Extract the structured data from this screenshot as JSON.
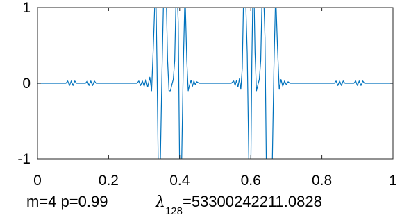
{
  "chart_data": {
    "type": "line",
    "title": "",
    "xlabel": "",
    "ylabel": "",
    "xlim": [
      0,
      1
    ],
    "ylim": [
      -1,
      1
    ],
    "xticks": [
      "0",
      "0.2",
      "0.4",
      "0.6",
      "0.8",
      "1"
    ],
    "yticks": [
      "1",
      "0",
      "-1"
    ],
    "grid": false,
    "colors": {
      "line": "#0072BD",
      "axes": "#262626"
    },
    "series": [
      {
        "x": [
          0,
          0.08,
          0.085,
          0.09,
          0.095,
          0.1,
          0.105,
          0.11,
          0.135,
          0.14,
          0.145,
          0.15,
          0.155,
          0.16,
          0.165,
          0.25,
          0.26,
          0.27,
          0.28,
          0.285,
          0.29,
          0.295,
          0.3,
          0.305,
          0.31,
          0.316,
          0.321,
          0.326,
          0.331,
          0.333,
          0.336,
          0.34,
          0.345,
          0.35,
          0.355,
          0.358,
          0.362,
          0.366,
          0.37,
          0.374,
          0.378,
          0.382,
          0.386,
          0.39,
          0.393,
          0.396,
          0.4,
          0.405,
          0.41,
          0.415,
          0.42,
          0.424,
          0.428,
          0.432,
          0.436,
          0.44,
          0.444,
          0.448,
          0.455,
          0.47,
          0.5,
          0.53,
          0.545,
          0.552,
          0.556,
          0.56,
          0.564,
          0.568,
          0.572,
          0.576,
          0.58,
          0.585,
          0.59,
          0.595,
          0.6,
          0.603,
          0.606,
          0.609,
          0.612,
          0.616,
          0.62,
          0.624,
          0.628,
          0.632,
          0.636,
          0.64,
          0.644,
          0.648,
          0.652,
          0.656,
          0.66,
          0.665,
          0.67,
          0.675,
          0.68,
          0.685,
          0.69,
          0.695,
          0.7,
          0.705,
          0.71,
          0.72,
          0.73,
          0.74,
          0.835,
          0.84,
          0.845,
          0.85,
          0.855,
          0.86,
          0.865,
          0.89,
          0.895,
          0.9,
          0.905,
          0.91,
          0.915,
          0.92,
          1
        ],
        "y": [
          0,
          0,
          0.03,
          -0.03,
          0.03,
          -0.03,
          0.03,
          0,
          0,
          0.03,
          -0.03,
          0.03,
          -0.03,
          0.03,
          0,
          0,
          0,
          0,
          0,
          0.03,
          -0.03,
          0.03,
          -0.04,
          0.05,
          -0.05,
          0.08,
          -0.1,
          0.5,
          1.2,
          1.2,
          0.3,
          -1.2,
          -1.2,
          0.1,
          1.2,
          1.2,
          1.2,
          0.3,
          -0.1,
          -0.1,
          -0.02,
          0.05,
          0.3,
          1.2,
          1.2,
          0.8,
          -1.2,
          -1.2,
          0.2,
          1.2,
          0.3,
          -0.1,
          -0.02,
          0.04,
          -0.04,
          0.03,
          -0.02,
          0.02,
          0,
          0,
          0,
          0,
          0,
          0.03,
          -0.03,
          0.04,
          -0.05,
          0.06,
          -0.08,
          0.2,
          1.2,
          1.2,
          0.4,
          -1.2,
          -1.2,
          0.3,
          1.2,
          1.2,
          0.4,
          -0.1,
          -0.02,
          0.05,
          0.3,
          1.2,
          1.2,
          0.6,
          -1.2,
          -1.2,
          -1.2,
          -1.2,
          -1.2,
          0.2,
          1.2,
          0.5,
          -0.08,
          0.05,
          -0.04,
          0.03,
          -0.02,
          0.02,
          0,
          0,
          0,
          0,
          0,
          0.03,
          -0.03,
          0.03,
          -0.03,
          0.03,
          0,
          0,
          0.03,
          -0.03,
          0.03,
          -0.03,
          0.03,
          0,
          0
        ]
      }
    ]
  },
  "caption": {
    "params": "m=4 p=0.99",
    "lambda_symbol": "λ",
    "lambda_subscript": "128",
    "lambda_value": "=53300242211.0828"
  }
}
